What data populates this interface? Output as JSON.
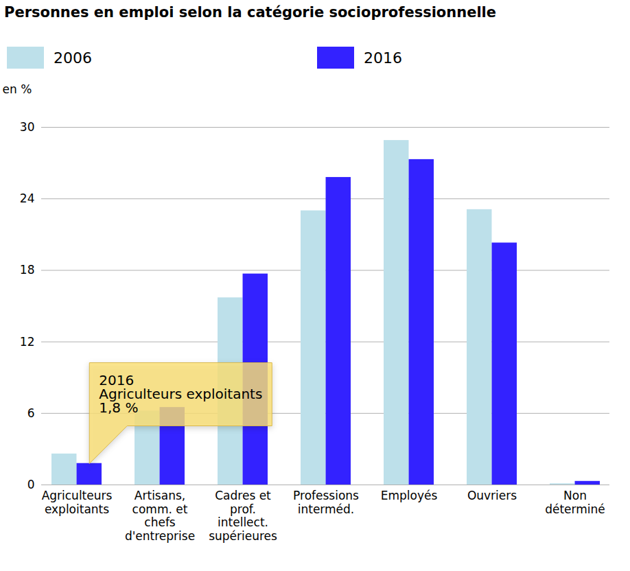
{
  "chart_data": {
    "type": "bar",
    "title": "Personnes en emploi selon la catégorie socioprofessionnelle",
    "y_label": "en %",
    "categories": [
      "Agriculteurs\nexploitants",
      "Artisans,\ncomm. et\nchefs\nd'entreprise",
      "Cadres et\nprof.\nintellect.\nsupérieures",
      "Professions\ninterméd.",
      "Employés",
      "Ouvriers",
      "Non\ndéterminé"
    ],
    "series": [
      {
        "name": "2006",
        "color": "#bde0ea",
        "values": [
          2.6,
          6.2,
          15.7,
          23.0,
          28.9,
          23.1,
          0.1
        ]
      },
      {
        "name": "2016",
        "color": "#3322ff",
        "values": [
          1.8,
          6.5,
          17.7,
          25.8,
          27.3,
          20.3,
          0.3
        ]
      }
    ],
    "ylim": [
      0,
      30
    ],
    "yticks": [
      0,
      6,
      12,
      18,
      24,
      30
    ],
    "grid": true,
    "legend": "top",
    "annotations": [
      {
        "category": "Agriculteurs\nexploitants",
        "series": "2016",
        "lines": [
          "2016",
          "Agriculteurs exploitants",
          "1,8 %"
        ]
      }
    ]
  }
}
